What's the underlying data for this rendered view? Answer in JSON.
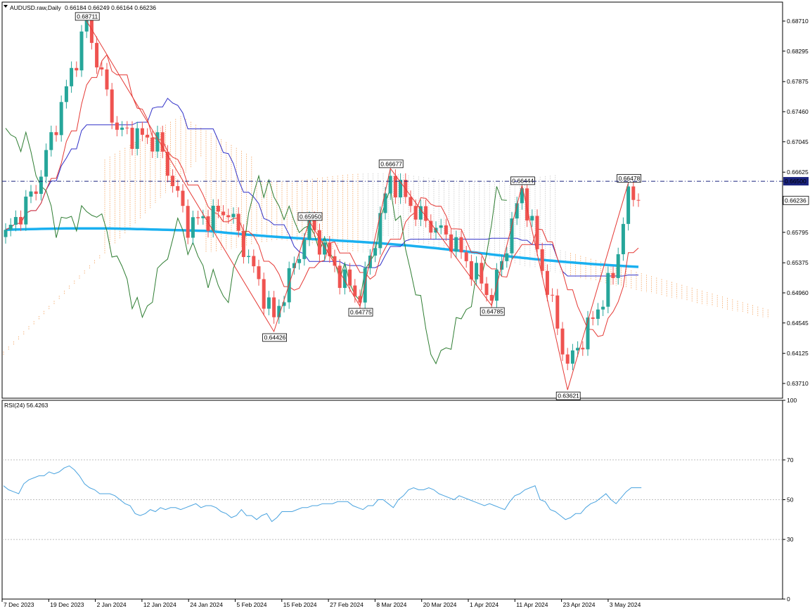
{
  "window": {
    "symbol_label": "AUDUSD.raw,Daily",
    "ohlc_label": "0.66184 0.66249 0.66164 0.66236"
  },
  "chart_data": [
    {
      "type": "candlestick",
      "ylim": [
        0.635,
        0.689
      ],
      "price_ticks": [
        "0.68710",
        "0.68295",
        "0.67875",
        "0.67460",
        "0.67045",
        "0.66625",
        "0.66500",
        "0.66236",
        "0.65795",
        "0.65375",
        "0.64960",
        "0.64545",
        "0.64125",
        "0.63710"
      ],
      "date_ticks": [
        "7 Dec 2023",
        "19 Dec 2023",
        "2 Jan 2024",
        "12 Jan 2024",
        "24 Jan 2024",
        "5 Feb 2024",
        "15 Feb 2024",
        "27 Feb 2024",
        "8 Mar 2024",
        "20 Mar 2024",
        "1 Apr 2024",
        "11 Apr 2024",
        "23 Apr 2024",
        "3 May 2024"
      ],
      "horizontal_line": 0.665,
      "current_price": 0.66236,
      "zigzag_labels": [
        {
          "label": "0.68711",
          "value": 0.68711,
          "bar": 16
        },
        {
          "label": "0.64426",
          "value": 0.64426,
          "bar": 53
        },
        {
          "label": "0.65950",
          "value": 0.6595,
          "bar": 60
        },
        {
          "label": "0.64775",
          "value": 0.64775,
          "bar": 70
        },
        {
          "label": "0.66677",
          "value": 0.66677,
          "bar": 76
        },
        {
          "label": "0.64785",
          "value": 0.64785,
          "bar": 96
        },
        {
          "label": "0.66444",
          "value": 0.66444,
          "bar": 102
        },
        {
          "label": "0.63621",
          "value": 0.63621,
          "bar": 111
        },
        {
          "label": "0.66478",
          "value": 0.66478,
          "bar": 123
        }
      ],
      "colors": {
        "bull": "#26a69a",
        "bear": "#ef5350",
        "ma": "#1ab0f0",
        "tenkan": "#e53935",
        "kijun": "#3030c8",
        "chikou": "#2e7d32",
        "cloud": "#f4a460",
        "cloud_b": "#c8c8c8",
        "zigzag": "#e53935",
        "hline": "#1a237e"
      }
    },
    {
      "type": "line",
      "title": "RSI(24) 56.4263",
      "ylim": [
        0,
        100
      ],
      "ticks": [
        "100",
        "70",
        "50",
        "30",
        "0"
      ],
      "series": [
        {
          "values": [
            57,
            55,
            54,
            53,
            58,
            60,
            61,
            62,
            62,
            64,
            63,
            64,
            66,
            67,
            65,
            62,
            58,
            56,
            55,
            53,
            53,
            53,
            52,
            50,
            48,
            47,
            43,
            42,
            43,
            45,
            44,
            46,
            45,
            46,
            46,
            45,
            46,
            47,
            48,
            46,
            47,
            47,
            46,
            44,
            43,
            41,
            42,
            45,
            42,
            42,
            40,
            42,
            43,
            39,
            41,
            44,
            44,
            44,
            45,
            46,
            46,
            47,
            47,
            48,
            48,
            48,
            49,
            49,
            49,
            47,
            46,
            45,
            47,
            47,
            50,
            50,
            48,
            46,
            50,
            52,
            55,
            56,
            55,
            55,
            56,
            55,
            53,
            52,
            51,
            50,
            52,
            51,
            50,
            49,
            48,
            47,
            48,
            47,
            46,
            45,
            49,
            52,
            53,
            55,
            56,
            57,
            50,
            49,
            45,
            44,
            42,
            40,
            41,
            43,
            43,
            46,
            48,
            49,
            51,
            53,
            50,
            48,
            51,
            54,
            56,
            56,
            56
          ]
        }
      ]
    }
  ]
}
